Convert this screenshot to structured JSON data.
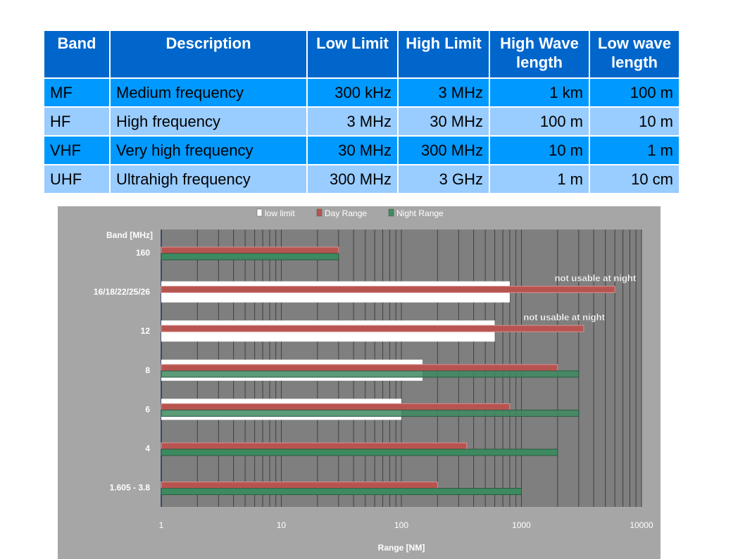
{
  "table": {
    "headers": [
      "Band",
      "Description",
      "Low Limit",
      "High Limit",
      "High Wave length",
      "Low wave length"
    ],
    "rows": [
      [
        "MF",
        "Medium frequency",
        "300 kHz",
        "3 MHz",
        "1 km",
        "100 m"
      ],
      [
        "HF",
        "High frequency",
        "3 MHz",
        "30 MHz",
        "100 m",
        "10 m"
      ],
      [
        "VHF",
        "Very high frequency",
        "30 MHz",
        "300 MHz",
        "10 m",
        "1 m"
      ],
      [
        "UHF",
        "Ultrahigh frequency",
        "300 MHz",
        "3 GHz",
        "1 m",
        "10 cm"
      ]
    ],
    "colors": {
      "header": "#0066cc",
      "row_dark": "#0099ff",
      "row_light": "#99ccff"
    }
  },
  "chart_data": {
    "type": "bar",
    "orientation": "horizontal",
    "ylabel": "Band [MHz]",
    "xlabel": "Range [NM]",
    "x_scale": "log",
    "xlim": [
      1,
      10000
    ],
    "x_ticks": [
      "1",
      "10",
      "100",
      "1000",
      "10000"
    ],
    "grid": true,
    "legend": "top",
    "categories": [
      "160",
      "16/18/22/25/26",
      "12",
      "8",
      "6",
      "4",
      "1.605 -  3.8"
    ],
    "series": [
      {
        "name": "low limit",
        "color": "#ffffff",
        "values": [
          null,
          800,
          600,
          150,
          100,
          null,
          null
        ]
      },
      {
        "name": "Day Range",
        "color": "#b85450",
        "values": [
          30,
          6000,
          3300,
          2000,
          800,
          350,
          200
        ]
      },
      {
        "name": "Night Range",
        "color": "#3d8a60",
        "values": [
          30,
          null,
          null,
          3000,
          3000,
          2000,
          1000
        ]
      }
    ],
    "annotations": [
      {
        "text": "not usable at night",
        "category": "16/18/22/25/26"
      },
      {
        "text": "not usable at night",
        "category": "12"
      }
    ]
  }
}
